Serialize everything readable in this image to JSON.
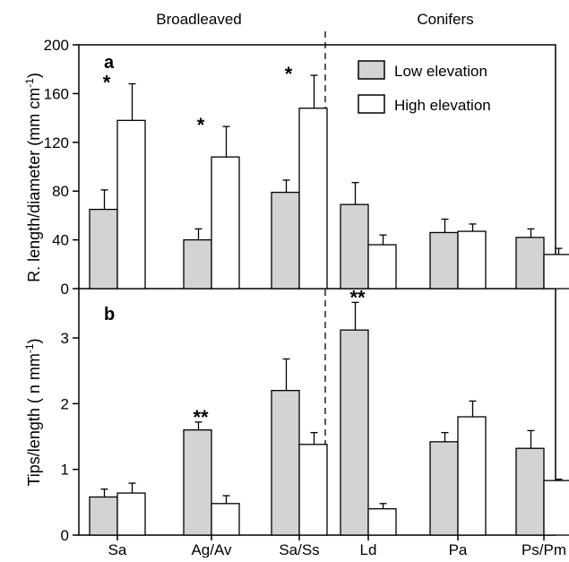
{
  "figure": {
    "group_labels": [
      "Broadleaved",
      "Conifers"
    ],
    "categories": [
      "Sa",
      "Ag/Av",
      "Sa/Ss",
      "Ld",
      "Pa",
      "Ps/Pm"
    ]
  },
  "colors": {
    "low": "#d3d3d3",
    "high": "#ffffff",
    "stroke": "#000000"
  },
  "chart_data": [
    {
      "panel_label": "a",
      "type": "bar",
      "ylabel": "R. length/diameter (mm cm⁻¹)",
      "ylabel_main": "R. length/diameter (mm cm",
      "ylabel_sup": "-1",
      "ylabel_end": ")",
      "ylim": [
        0,
        200
      ],
      "yticks": [
        0,
        40,
        80,
        120,
        160,
        200
      ],
      "categories": [
        "Sa",
        "Ag/Av",
        "Sa/Ss",
        "Ld",
        "Pa",
        "Ps/Pm"
      ],
      "series": [
        {
          "name": "Low elevation",
          "values": [
            65,
            40,
            79,
            69,
            46,
            42
          ],
          "errors": [
            16,
            9,
            10,
            18,
            11,
            7
          ]
        },
        {
          "name": "High elevation",
          "values": [
            138,
            108,
            148,
            36,
            47,
            28
          ],
          "errors": [
            30,
            25,
            27,
            8,
            6,
            5
          ]
        }
      ],
      "annotations": [
        {
          "text": "*",
          "category": "Sa"
        },
        {
          "text": "*",
          "category": "Ag/Av"
        },
        {
          "text": "*",
          "category": "Sa/Ss"
        }
      ],
      "legend": {
        "position": "top-right",
        "entries": [
          "Low elevation",
          "High elevation"
        ]
      }
    },
    {
      "panel_label": "b",
      "type": "bar",
      "ylabel": "Tips/length ( n mm⁻¹)",
      "ylabel_main": "Tips/length ( n mm",
      "ylabel_sup": "-1",
      "ylabel_end": ")",
      "ylim": [
        0,
        3.75
      ],
      "yticks": [
        0,
        1,
        2,
        3
      ],
      "categories": [
        "Sa",
        "Ag/Av",
        "Sa/Ss",
        "Ld",
        "Pa",
        "Ps/Pm"
      ],
      "series": [
        {
          "name": "Low elevation",
          "values": [
            0.58,
            1.6,
            2.2,
            3.12,
            1.42,
            1.32
          ],
          "errors": [
            0.12,
            0.12,
            0.48,
            0.42,
            0.14,
            0.27
          ]
        },
        {
          "name": "High elevation",
          "values": [
            0.64,
            0.48,
            1.38,
            0.4,
            1.8,
            0.83
          ],
          "errors": [
            0.15,
            0.12,
            0.18,
            0.08,
            0.24,
            0.02
          ]
        }
      ],
      "annotations": [
        {
          "text": "**",
          "category": "Ag/Av"
        },
        {
          "text": "**",
          "category": "Ld"
        }
      ]
    }
  ]
}
